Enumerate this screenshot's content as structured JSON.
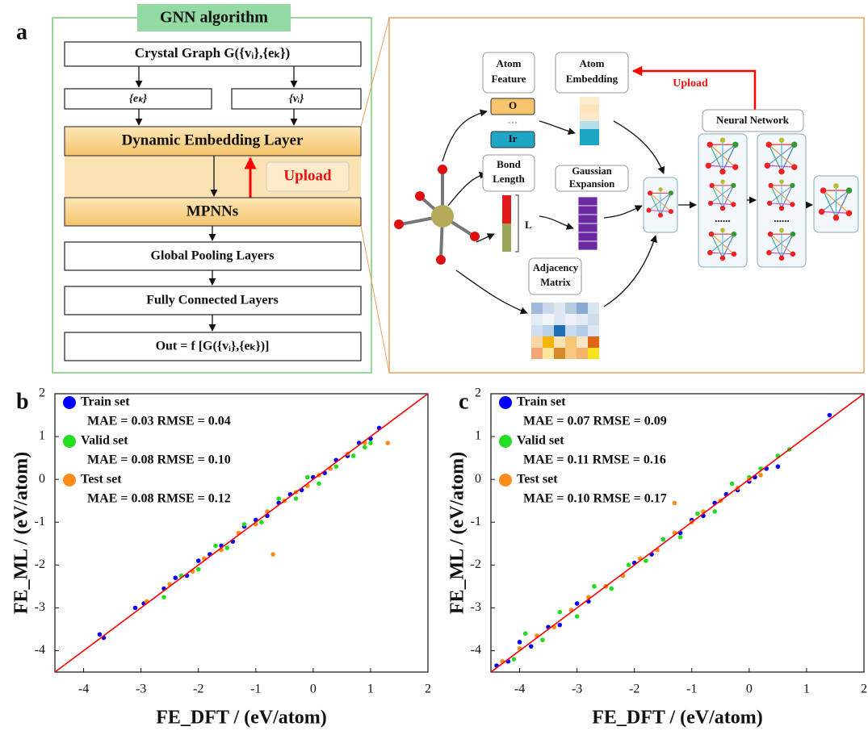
{
  "panel_labels": [
    "a",
    "b",
    "c"
  ],
  "gnn_panel": {
    "title": "GNN algorithm",
    "crystal_graph": "Crystal Graph G({vᵢ},{eₖ})",
    "edges": "{eₖ}",
    "nodes": "{vᵢ}",
    "embedding_layer": "Dynamic Embedding Layer",
    "upload": "Upload",
    "mpnn": "MPNNs",
    "pooling": "Global Pooling Layers",
    "fully_connected": "Fully Connected Layers",
    "output": "Out = f [G({vᵢ},{eₖ})]"
  },
  "workflow_panel": {
    "atom_feature": [
      "Atom",
      "Feature"
    ],
    "atom_embedding": [
      "Atom",
      "Embedding"
    ],
    "upload": "Upload",
    "neural_network": "Neural Network",
    "feature_o": "O",
    "feature_dots": "···",
    "feature_ir": "Ir",
    "bond_length": [
      "Bond",
      "Length"
    ],
    "gaussian_expansion": [
      "Gaussian",
      "Expansion"
    ],
    "length_symbol": "L",
    "adjacency_matrix": [
      "Adjacency",
      "Matrix"
    ],
    "ellipsis": [
      "......",
      "......"
    ]
  },
  "chart_data": [
    {
      "type": "scatter",
      "xlabel": "FE_DFT / (eV/atom)",
      "ylabel": "FE_ML / (eV/atom)",
      "xlim": [
        -4.5,
        2
      ],
      "ylim": [
        -4.5,
        2
      ],
      "xticks": [
        -4,
        -3,
        -2,
        -1,
        0,
        1,
        2
      ],
      "yticks": [
        -4,
        -3,
        -2,
        -1,
        0,
        1,
        2
      ],
      "diagonal": true,
      "diagonal_color": "#ff0000",
      "annotations": [
        "MAE = 0.03 RMSE = 0.04",
        "MAE = 0.08 RMSE = 0.10",
        "MAE = 0.08 RMSE = 0.12"
      ],
      "series": [
        {
          "name": "Train set",
          "color": "#0000ff",
          "x": [
            -3.72,
            -3.65,
            -3.1,
            -2.95,
            -2.6,
            -2.4,
            -2.2,
            -2.0,
            -1.8,
            -1.6,
            -1.4,
            -1.2,
            -1.0,
            -0.8,
            -0.6,
            -0.4,
            -0.2,
            0.0,
            0.2,
            0.4,
            0.6,
            0.8,
            1.0,
            1.15
          ],
          "y": [
            -3.62,
            -3.7,
            -3.0,
            -2.9,
            -2.55,
            -2.3,
            -2.25,
            -1.9,
            -1.75,
            -1.55,
            -1.45,
            -1.1,
            -0.95,
            -0.85,
            -0.55,
            -0.35,
            -0.25,
            0.05,
            0.15,
            0.45,
            0.55,
            0.85,
            0.95,
            1.2
          ]
        },
        {
          "name": "Valid set",
          "color": "#22dd22",
          "x": [
            -2.6,
            -2.3,
            -2.0,
            -1.7,
            -1.5,
            -1.2,
            -0.9,
            -0.6,
            -0.3,
            -0.1,
            0.1,
            0.4,
            0.7,
            0.9,
            1.0
          ],
          "y": [
            -2.75,
            -2.25,
            -2.1,
            -1.55,
            -1.6,
            -1.05,
            -1.0,
            -0.45,
            -0.45,
            0.05,
            -0.1,
            0.3,
            0.55,
            0.75,
            0.85
          ]
        },
        {
          "name": "Test set",
          "color": "#ff8c1a",
          "x": [
            -2.9,
            -2.5,
            -2.1,
            -1.9,
            -1.6,
            -1.3,
            -1.0,
            -0.8,
            -0.5,
            -0.3,
            -0.1,
            0.1,
            0.3,
            0.6,
            0.9,
            1.3,
            -0.7
          ],
          "y": [
            -2.85,
            -2.45,
            -2.15,
            -1.85,
            -1.65,
            -1.25,
            -1.05,
            -0.75,
            -0.5,
            -0.3,
            -0.15,
            0.1,
            0.25,
            0.6,
            0.85,
            0.85,
            -1.75
          ]
        }
      ]
    },
    {
      "type": "scatter",
      "xlabel": "FE_DFT / (eV/atom)",
      "ylabel": "FE_ML / (eV/atom)",
      "xlim": [
        -4.5,
        2
      ],
      "ylim": [
        -4.5,
        2
      ],
      "xticks": [
        -4,
        -3,
        -2,
        -1,
        0,
        1,
        2
      ],
      "yticks": [
        -4,
        -3,
        -2,
        -1,
        0,
        1,
        2
      ],
      "diagonal": true,
      "diagonal_color": "#ff0000",
      "annotations": [
        "MAE = 0.07 RMSE = 0.09",
        "MAE = 0.11 RMSE = 0.16",
        "MAE = 0.10 RMSE = 0.17"
      ],
      "series": [
        {
          "name": "Train set",
          "color": "#0000ff",
          "x": [
            -4.4,
            -4.2,
            -4.0,
            -3.8,
            -3.5,
            -3.3,
            -3.0,
            -2.8,
            -2.5,
            -2.2,
            -2.0,
            -1.7,
            -1.5,
            -1.2,
            -1.0,
            -0.8,
            -0.6,
            -0.4,
            -0.2,
            0.0,
            0.1,
            0.3,
            0.5,
            1.4
          ],
          "y": [
            -4.35,
            -4.25,
            -3.8,
            -3.9,
            -3.45,
            -3.4,
            -2.9,
            -2.85,
            -2.5,
            -2.25,
            -1.95,
            -1.75,
            -1.4,
            -1.25,
            -0.95,
            -0.85,
            -0.55,
            -0.35,
            -0.25,
            -0.05,
            0.05,
            0.25,
            0.3,
            1.5
          ]
        },
        {
          "name": "Valid set",
          "color": "#22dd22",
          "x": [
            -4.1,
            -3.9,
            -3.6,
            -3.3,
            -3.0,
            -2.7,
            -2.4,
            -2.1,
            -1.8,
            -1.5,
            -1.2,
            -0.9,
            -0.6,
            -0.3,
            0.0,
            0.2,
            0.5,
            0.7
          ],
          "y": [
            -4.2,
            -3.6,
            -3.75,
            -3.1,
            -3.2,
            -2.5,
            -2.55,
            -2.0,
            -1.9,
            -1.4,
            -1.35,
            -0.8,
            -0.75,
            -0.1,
            0.05,
            0.25,
            0.55,
            0.7
          ]
        },
        {
          "name": "Test set",
          "color": "#ff8c1a",
          "x": [
            -4.3,
            -4.0,
            -3.7,
            -3.4,
            -3.1,
            -2.8,
            -2.5,
            -2.2,
            -1.9,
            -1.6,
            -1.3,
            -1.0,
            -0.8,
            -0.5,
            -0.2,
            0.0,
            0.2,
            -1.3
          ],
          "y": [
            -4.25,
            -3.95,
            -3.65,
            -3.45,
            -3.05,
            -2.75,
            -2.5,
            -2.25,
            -1.85,
            -1.65,
            -1.25,
            -1.0,
            -0.75,
            -0.5,
            -0.2,
            0.0,
            0.1,
            -0.55
          ]
        }
      ]
    }
  ]
}
